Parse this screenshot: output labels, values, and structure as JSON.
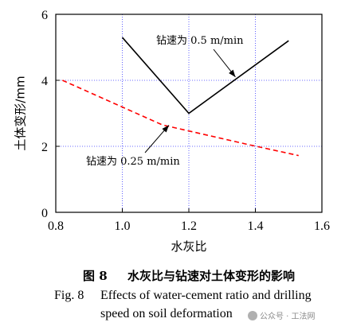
{
  "chart_data": {
    "type": "line",
    "xlabel": "水灰比",
    "ylabel": "土体变形/mm",
    "xlim": [
      0.8,
      1.6
    ],
    "ylim": [
      0,
      6
    ],
    "xticks": [
      0.8,
      1.0,
      1.2,
      1.4,
      1.6
    ],
    "xtick_labels": [
      "0.8",
      "1.0",
      "1.2",
      "1.4",
      "1.6"
    ],
    "yticks": [
      0,
      2,
      4,
      6
    ],
    "ytick_labels": [
      "0",
      "2",
      "4",
      "6"
    ],
    "grid": "dotted at x=1.0, 1.2, 1.4 and y=2, 4",
    "series": [
      {
        "name": "钻速为 0.5 m/min",
        "style": "solid",
        "color": "#000000",
        "x": [
          1.0,
          1.2,
          1.5
        ],
        "y": [
          5.3,
          3.0,
          5.2
        ]
      },
      {
        "name": "钻速为 0.25 m/min",
        "style": "dashed",
        "color": "#ff0000",
        "x": [
          0.82,
          1.12,
          1.38,
          1.53
        ],
        "y": [
          4.0,
          2.65,
          2.05,
          1.72
        ]
      }
    ],
    "annotations": [
      {
        "text": "钻速为 0.5 m/min",
        "series": 0,
        "arrow_to": [
          1.34,
          4.1
        ]
      },
      {
        "text": "钻速为 0.25 m/min",
        "series": 1,
        "arrow_to": [
          1.14,
          2.64
        ]
      }
    ]
  },
  "caption": {
    "cn_label": "图 8",
    "cn_text": "水灰比与钻速对土体变形的影响",
    "en_label": "Fig. 8",
    "en_line1": "Effects of water-cement ratio and drilling",
    "en_line2": "speed on soil deformation"
  },
  "watermark": {
    "text": "公众号 · 工法网"
  }
}
